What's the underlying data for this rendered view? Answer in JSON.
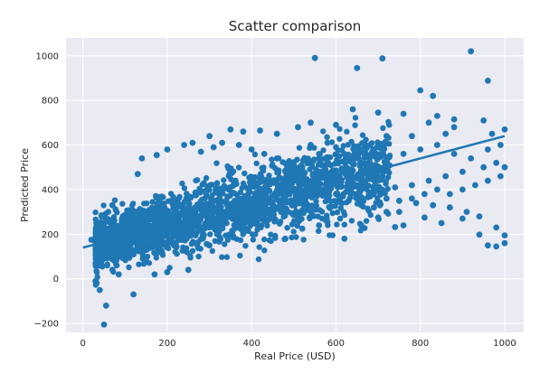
{
  "colors": {
    "figure_background": "#ffffff",
    "plot_background": "#eaeaf2",
    "grid": "#ffffff",
    "points": "#1f77b4",
    "fit_line": "#1f77b4"
  },
  "chart_data": {
    "type": "scatter",
    "title": "Scatter comparison",
    "xlabel": "Real Price (USD)",
    "ylabel": "Predicted Price",
    "xlim": [
      -40,
      1045
    ],
    "ylim": [
      -240,
      1080
    ],
    "x_ticks": [
      0,
      200,
      400,
      600,
      800,
      1000
    ],
    "y_ticks": [
      -200,
      0,
      200,
      400,
      600,
      800,
      1000
    ],
    "grid": true,
    "legend": "none",
    "trend_line": {
      "x": [
        0,
        1000
      ],
      "y": [
        140,
        640
      ]
    },
    "dense_cloud": {
      "approx_count": 2400,
      "x_range": [
        30,
        1000
      ],
      "center_line": {
        "x": [
          30,
          1000
        ],
        "y": [
          155,
          630
        ]
      },
      "spread_sd": 75
    },
    "points": [
      [
        920,
        1020
      ],
      [
        710,
        988
      ],
      [
        650,
        945
      ],
      [
        960,
        888
      ],
      [
        800,
        845
      ],
      [
        830,
        820
      ],
      [
        550,
        990
      ],
      [
        640,
        760
      ],
      [
        700,
        745
      ],
      [
        760,
        740
      ],
      [
        840,
        730
      ],
      [
        880,
        715
      ],
      [
        820,
        700
      ],
      [
        950,
        710
      ],
      [
        1000,
        670
      ],
      [
        970,
        650
      ],
      [
        880,
        680
      ],
      [
        860,
        650
      ],
      [
        780,
        640
      ],
      [
        720,
        640
      ],
      [
        680,
        600
      ],
      [
        600,
        690
      ],
      [
        510,
        680
      ],
      [
        460,
        650
      ],
      [
        420,
        665
      ],
      [
        380,
        660
      ],
      [
        350,
        670
      ],
      [
        540,
        700
      ],
      [
        300,
        640
      ],
      [
        260,
        610
      ],
      [
        240,
        600
      ],
      [
        200,
        580
      ],
      [
        175,
        555
      ],
      [
        140,
        540
      ],
      [
        130,
        470
      ],
      [
        60,
        300
      ],
      [
        70,
        330
      ],
      [
        40,
        250
      ],
      [
        35,
        230
      ],
      [
        20,
        175
      ],
      [
        50,
        170
      ],
      [
        45,
        140
      ],
      [
        30,
        -10
      ],
      [
        40,
        -50
      ],
      [
        55,
        -120
      ],
      [
        50,
        -205
      ],
      [
        120,
        -70
      ],
      [
        110,
        95
      ],
      [
        85,
        20
      ],
      [
        150,
        80
      ],
      [
        200,
        30
      ],
      [
        170,
        20
      ],
      [
        250,
        40
      ],
      [
        300,
        150
      ],
      [
        380,
        210
      ],
      [
        420,
        235
      ],
      [
        480,
        180
      ],
      [
        520,
        225
      ],
      [
        560,
        240
      ],
      [
        580,
        255
      ],
      [
        620,
        180
      ],
      [
        610,
        270
      ],
      [
        660,
        240
      ],
      [
        700,
        275
      ],
      [
        740,
        232
      ],
      [
        760,
        240
      ],
      [
        810,
        275
      ],
      [
        850,
        250
      ],
      [
        900,
        270
      ],
      [
        940,
        198
      ],
      [
        980,
        230
      ],
      [
        1000,
        195
      ],
      [
        1000,
        160
      ],
      [
        980,
        145
      ],
      [
        960,
        150
      ],
      [
        940,
        280
      ],
      [
        910,
        300
      ],
      [
        870,
        320
      ],
      [
        830,
        330
      ],
      [
        790,
        340
      ],
      [
        750,
        350
      ],
      [
        720,
        360
      ],
      [
        690,
        380
      ],
      [
        660,
        400
      ],
      [
        640,
        430
      ],
      [
        600,
        460
      ],
      [
        560,
        480
      ],
      [
        520,
        500
      ],
      [
        500,
        520
      ],
      [
        460,
        540
      ],
      [
        430,
        560
      ],
      [
        400,
        580
      ],
      [
        370,
        600
      ],
      [
        330,
        610
      ],
      [
        310,
        590
      ],
      [
        280,
        570
      ],
      [
        680,
        500
      ],
      [
        720,
        520
      ],
      [
        760,
        560
      ],
      [
        800,
        580
      ],
      [
        840,
        600
      ],
      [
        880,
        560
      ],
      [
        920,
        540
      ],
      [
        960,
        580
      ],
      [
        990,
        600
      ],
      [
        980,
        520
      ],
      [
        950,
        500
      ],
      [
        900,
        480
      ],
      [
        860,
        460
      ],
      [
        820,
        440
      ],
      [
        780,
        420
      ],
      [
        740,
        410
      ],
      [
        700,
        440
      ],
      [
        660,
        460
      ],
      [
        640,
        520
      ],
      [
        620,
        560
      ],
      [
        600,
        590
      ],
      [
        580,
        610
      ],
      [
        560,
        560
      ],
      [
        540,
        600
      ],
      [
        900,
        400
      ],
      [
        930,
        420
      ],
      [
        960,
        440
      ],
      [
        990,
        460
      ],
      [
        1000,
        500
      ],
      [
        870,
        380
      ],
      [
        840,
        400
      ],
      [
        810,
        380
      ],
      [
        780,
        360
      ],
      [
        750,
        300
      ],
      [
        720,
        300
      ],
      [
        690,
        320
      ],
      [
        660,
        330
      ],
      [
        630,
        350
      ],
      [
        600,
        380
      ],
      [
        570,
        400
      ],
      [
        540,
        420
      ],
      [
        510,
        440
      ],
      [
        490,
        380
      ],
      [
        470,
        300
      ],
      [
        450,
        320
      ],
      [
        430,
        280
      ],
      [
        410,
        300
      ],
      [
        390,
        330
      ],
      [
        360,
        350
      ],
      [
        330,
        300
      ],
      [
        300,
        260
      ],
      [
        270,
        240
      ],
      [
        240,
        200
      ],
      [
        210,
        180
      ],
      [
        180,
        160
      ],
      [
        150,
        130
      ],
      [
        120,
        110
      ],
      [
        90,
        100
      ],
      [
        80,
        60
      ],
      [
        70,
        40
      ]
    ]
  }
}
